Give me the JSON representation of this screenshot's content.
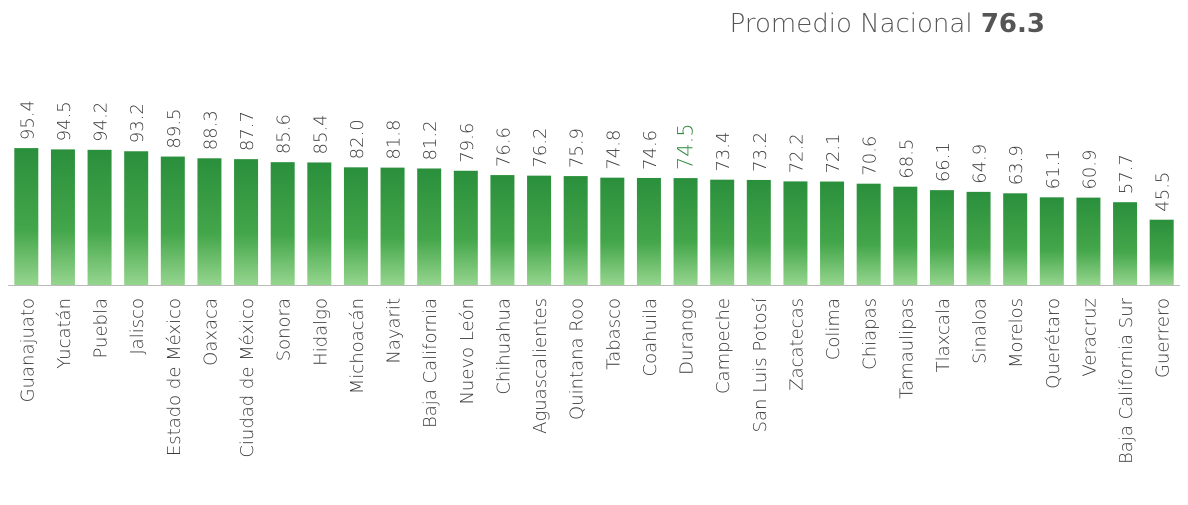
{
  "chart_data": {
    "type": "bar",
    "annotation": {
      "label": "Promedio Nacional",
      "value": 76.3
    },
    "categories": [
      "Guanajuato",
      "Yucatán",
      "Puebla",
      "Jalisco",
      "Estado de México",
      "Oaxaca",
      "Ciudad de México",
      "Sonora",
      "Hidalgo",
      "Michoacán",
      "Nayarit",
      "Baja California",
      "Nuevo León",
      "Chihuahua",
      "Aguascalientes",
      "Quintana Roo",
      "Tabasco",
      "Coahuila",
      "Durango",
      "Campeche",
      "San Luis Potosí",
      "Zacatecas",
      "Colima",
      "Chiapas",
      "Tamaulipas",
      "Tlaxcala",
      "Sinaloa",
      "Morelos",
      "Querétaro",
      "Veracruz",
      "Baja California Sur",
      "Guerrero"
    ],
    "values": [
      95.4,
      94.5,
      94.2,
      93.2,
      89.5,
      88.3,
      87.7,
      85.6,
      85.4,
      82.0,
      81.8,
      81.2,
      79.6,
      76.6,
      76.2,
      75.9,
      74.8,
      74.6,
      74.5,
      73.4,
      73.2,
      72.2,
      72.1,
      70.6,
      68.5,
      66.1,
      64.9,
      63.9,
      61.1,
      60.9,
      57.7,
      45.5
    ],
    "value_labels": [
      "95.4",
      "94.5",
      "94.2",
      "93.2",
      "89.5",
      "88.3",
      "87.7",
      "85.6",
      "85.4",
      "82.0",
      "81.8",
      "81.2",
      "79.6",
      "76.6",
      "76.2",
      "75.9",
      "74.8",
      "74.6",
      "74.5",
      "73.4",
      "73.2",
      "72.2",
      "72.1",
      "70.6",
      "68.5",
      "66.1",
      "64.9",
      "63.9",
      "61.1",
      "60.9",
      "57.7",
      "45.5"
    ],
    "color": "#2e9440",
    "highlight": "Durango",
    "highlight_color": "#2e8b3e",
    "ylim": [
      0,
      100
    ]
  }
}
